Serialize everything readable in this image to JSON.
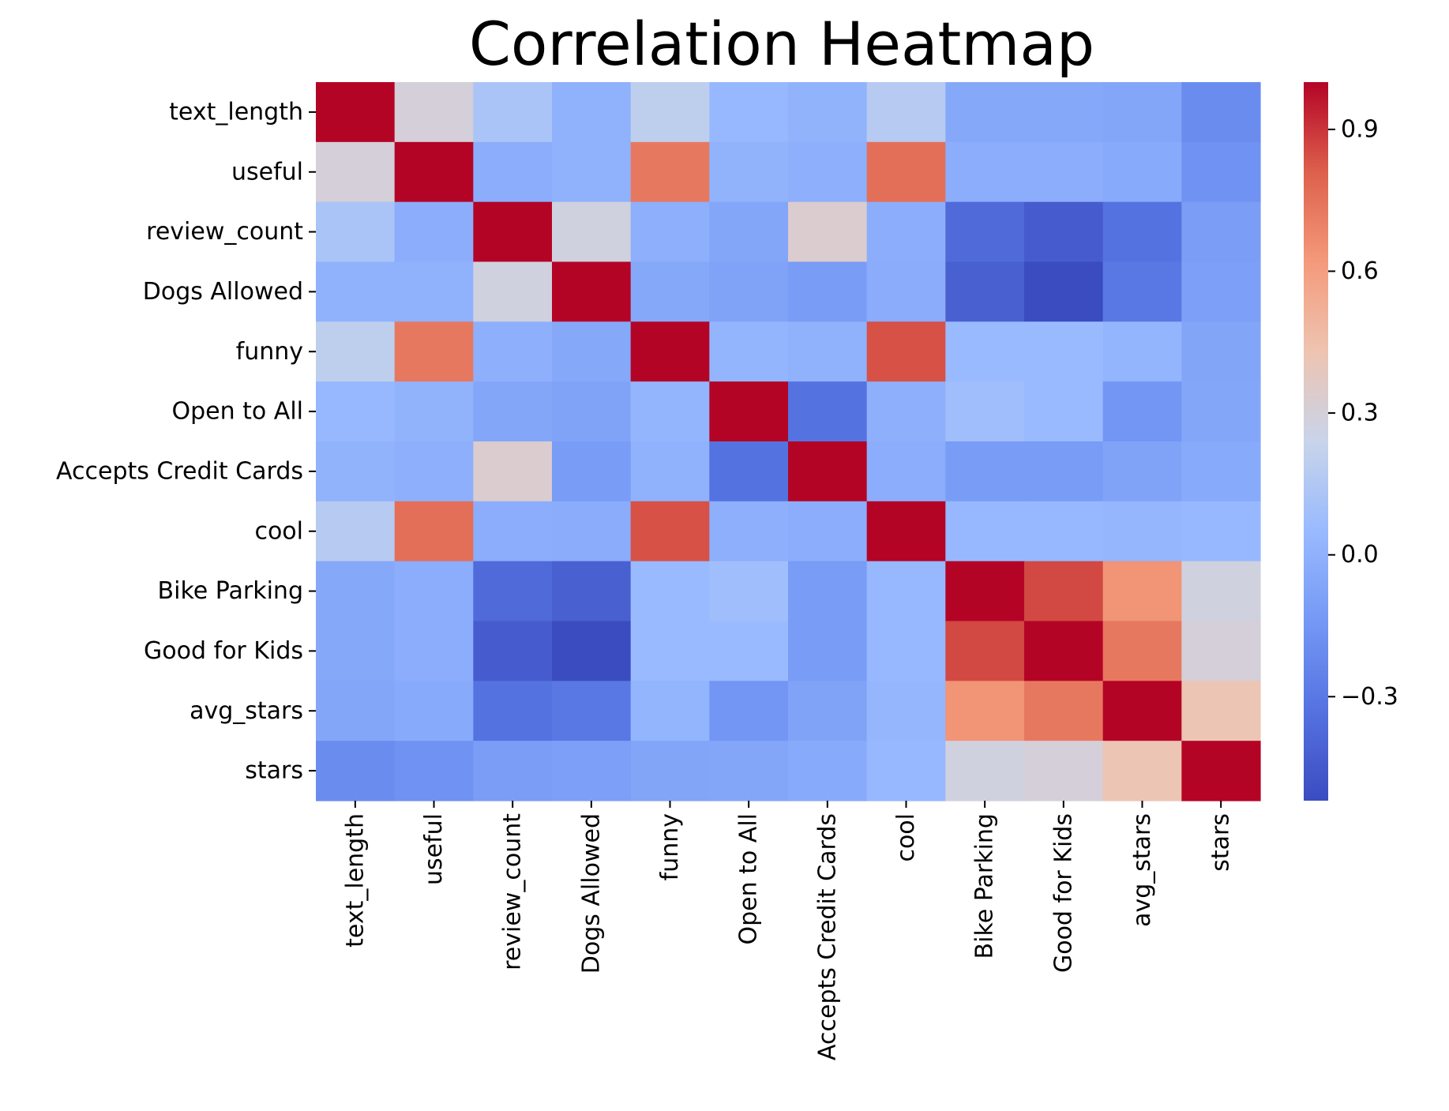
{
  "chart_data": {
    "type": "heatmap",
    "title": "Correlation Heatmap",
    "xlabel": "",
    "ylabel": "",
    "rows": [
      "text_length",
      "useful",
      "review_count",
      "Dogs Allowed",
      "funny",
      "Open to All",
      "Accepts Credit Cards",
      "cool",
      "Bike Parking",
      "Good for Kids",
      "avg_stars",
      "stars"
    ],
    "columns": [
      "text_length",
      "useful",
      "review_count",
      "Dogs Allowed",
      "funny",
      "Open to All",
      "Accepts Credit Cards",
      "cool",
      "Bike Parking",
      "Good for Kids",
      "avg_stars",
      "stars"
    ],
    "values": [
      [
        1.0,
        0.3,
        0.12,
        0.0,
        0.2,
        0.04,
        0.01,
        0.17,
        -0.05,
        -0.05,
        -0.06,
        -0.2
      ],
      [
        0.3,
        1.0,
        -0.02,
        0.0,
        0.73,
        0.01,
        -0.01,
        0.76,
        -0.02,
        -0.02,
        -0.04,
        -0.17
      ],
      [
        0.12,
        -0.02,
        1.0,
        0.28,
        -0.01,
        -0.06,
        0.33,
        -0.02,
        -0.37,
        -0.44,
        -0.33,
        -0.11
      ],
      [
        0.0,
        0.0,
        0.28,
        1.0,
        -0.05,
        -0.08,
        -0.12,
        -0.03,
        -0.42,
        -0.52,
        -0.3,
        -0.1
      ],
      [
        0.2,
        0.73,
        -0.01,
        -0.05,
        1.0,
        0.02,
        0.0,
        0.84,
        0.05,
        0.05,
        0.02,
        -0.07
      ],
      [
        0.04,
        0.01,
        -0.06,
        -0.08,
        0.02,
        1.0,
        -0.33,
        -0.01,
        0.08,
        0.05,
        -0.15,
        -0.06
      ],
      [
        0.01,
        -0.01,
        0.33,
        -0.12,
        0.0,
        -0.33,
        1.0,
        -0.02,
        -0.12,
        -0.12,
        -0.08,
        -0.04
      ],
      [
        0.17,
        0.76,
        -0.02,
        -0.03,
        0.84,
        -0.01,
        -0.02,
        1.0,
        0.04,
        0.04,
        0.03,
        0.04
      ],
      [
        -0.05,
        -0.02,
        -0.37,
        -0.42,
        0.05,
        0.08,
        -0.12,
        0.04,
        1.0,
        0.86,
        0.64,
        0.28
      ],
      [
        -0.05,
        -0.02,
        -0.44,
        -0.52,
        0.05,
        0.05,
        -0.12,
        0.04,
        0.86,
        1.0,
        0.73,
        0.3
      ],
      [
        -0.06,
        -0.04,
        -0.33,
        -0.3,
        0.02,
        -0.15,
        -0.08,
        0.03,
        0.64,
        0.73,
        1.0,
        0.42
      ],
      [
        -0.2,
        -0.17,
        -0.11,
        -0.1,
        -0.07,
        -0.06,
        -0.04,
        0.04,
        0.28,
        0.3,
        0.42,
        1.0
      ]
    ],
    "colormap": "coolwarm",
    "vmin": -0.52,
    "vmax": 1.0,
    "colorbar": {
      "ticks": [
        0.9,
        0.6,
        0.3,
        0.0,
        -0.3
      ],
      "tick_labels": [
        "0.9",
        "0.6",
        "0.3",
        "0.0",
        "−0.3"
      ]
    },
    "grid": false,
    "legend": "colorbar-right"
  }
}
